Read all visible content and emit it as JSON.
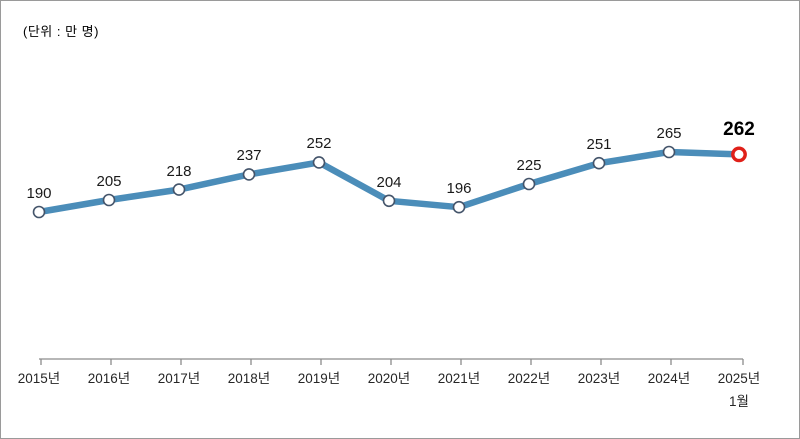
{
  "unit_label": "(단위 : 만 명)",
  "chart_data": {
    "type": "line",
    "categories": [
      "2015년",
      "2016년",
      "2017년",
      "2018년",
      "2019년",
      "2020년",
      "2021년",
      "2022년",
      "2023년",
      "2024년",
      "2025년"
    ],
    "last_category_sub_label": "1월",
    "values": [
      190,
      205,
      218,
      237,
      252,
      204,
      196,
      225,
      251,
      265,
      262
    ],
    "data_labels_visible": true,
    "highlight_last_point": true,
    "title": "",
    "xlabel": "",
    "ylabel": "",
    "y_axis_visible": false,
    "grid": false,
    "legend": "none",
    "colors": {
      "line": "#4b8db9",
      "marker_fill": "#ffffff",
      "marker_border": "#44546a",
      "highlight_marker_border": "#e02019",
      "label_color": "#1a1a1a",
      "highlight_label_color": "#000000",
      "axis_color": "#8c8c8c",
      "axis_label_color": "#262626"
    }
  }
}
